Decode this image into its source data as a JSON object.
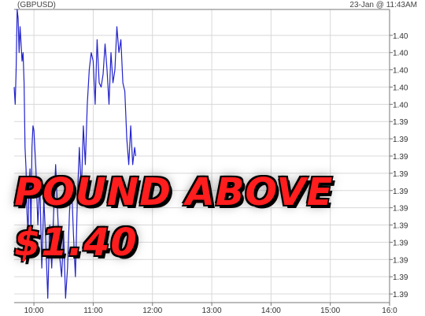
{
  "header": {
    "symbol": "(GBPUSD)",
    "timestamp": "23-Jan @ 11:43AM"
  },
  "overlay": {
    "line1": "POUND ABOVE",
    "line2": "$1.40"
  },
  "colors": {
    "line": "#2222cc",
    "grid": "#d8d8d8",
    "overlay_text": "#ff1d1d",
    "overlay_shadow": "#000000",
    "background": "#ffffff"
  },
  "chart_data": {
    "type": "line",
    "title": "(GBPUSD)",
    "xlabel": "",
    "ylabel": "",
    "x_ticks": [
      "10:00",
      "11:00",
      "12:00",
      "13:00",
      "14:00",
      "15:00",
      "16:0"
    ],
    "y_ticks": [
      "1.40",
      "1.40",
      "1.40",
      "1.40",
      "1.40",
      "1.39",
      "1.39",
      "1.39",
      "1.39",
      "1.39",
      "1.39",
      "1.39",
      "1.39",
      "1.39",
      "1.39",
      "1.39"
    ],
    "y_tick_values": [
      1.4016,
      1.4012,
      1.4008,
      1.4004,
      1.4,
      1.3996,
      1.3992,
      1.3988,
      1.3984,
      1.398,
      1.3976,
      1.3972,
      1.3968,
      1.3964,
      1.396,
      1.3956
    ],
    "xlim": [
      "09:40",
      "16:00"
    ],
    "ylim": [
      1.3954,
      1.4022
    ],
    "grid": true,
    "series": [
      {
        "x": [
          "09:40",
          "09:41",
          "09:42",
          "09:43",
          "09:44",
          "09:45",
          "09:46",
          "09:47",
          "09:48",
          "09:49",
          "09:50",
          "09:51",
          "09:52",
          "09:53",
          "09:54",
          "09:55",
          "09:56",
          "09:57",
          "09:58",
          "09:59",
          "10:00",
          "10:02",
          "10:04",
          "10:06",
          "10:08",
          "10:10",
          "10:12",
          "10:14",
          "10:16",
          "10:18",
          "10:20",
          "10:22",
          "10:24",
          "10:26",
          "10:28",
          "10:30",
          "10:32",
          "10:34",
          "10:36",
          "10:38",
          "10:40",
          "10:42",
          "10:44",
          "10:46",
          "10:48",
          "10:50",
          "10:52",
          "10:54",
          "10:56",
          "10:58",
          "11:00",
          "11:02",
          "11:04",
          "11:06",
          "11:08",
          "11:10",
          "11:12",
          "11:14",
          "11:16",
          "11:18",
          "11:20",
          "11:22",
          "11:24",
          "11:26",
          "11:28",
          "11:30",
          "11:32",
          "11:34",
          "11:36",
          "11:38",
          "11:40",
          "11:42",
          "11:43"
        ],
        "values": [
          1.4004,
          1.4,
          1.4008,
          1.4022,
          1.402,
          1.4012,
          1.4018,
          1.4014,
          1.401,
          1.4012,
          1.4005,
          1.399,
          1.3985,
          1.3975,
          1.397,
          1.398,
          1.3985,
          1.397,
          1.399,
          1.3995,
          1.3994,
          1.3985,
          1.3972,
          1.3982,
          1.3962,
          1.3978,
          1.3968,
          1.3955,
          1.3972,
          1.3962,
          1.3975,
          1.3986,
          1.3975,
          1.3965,
          1.396,
          1.397,
          1.3955,
          1.3962,
          1.3975,
          1.3982,
          1.397,
          1.396,
          1.3978,
          1.399,
          1.398,
          1.3995,
          1.3986,
          1.4,
          1.4008,
          1.4012,
          1.401,
          1.4,
          1.4015,
          1.4005,
          1.4004,
          1.4007,
          1.4014,
          1.4008,
          1.4,
          1.4012,
          1.4005,
          1.4008,
          1.4018,
          1.4012,
          1.4015,
          1.4005,
          1.4003,
          1.3992,
          1.3986,
          1.3995,
          1.3986,
          1.399,
          1.3988
        ]
      }
    ]
  }
}
